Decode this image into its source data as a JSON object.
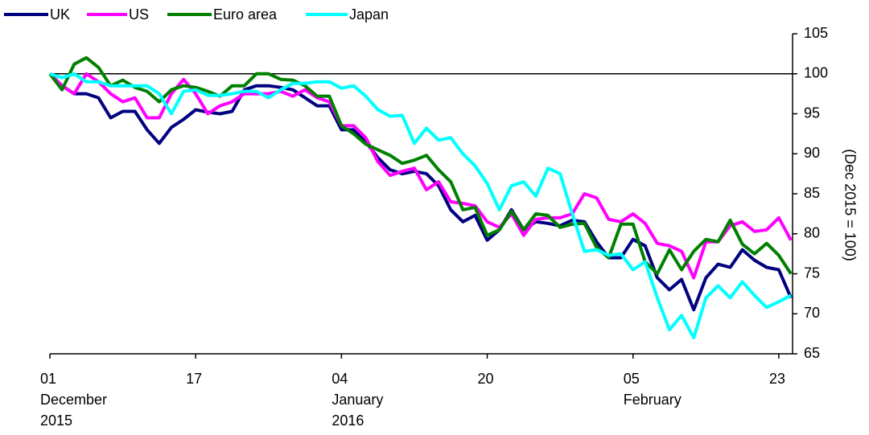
{
  "chart_data": {
    "type": "line",
    "y_axis_label": "(Dec 2015 = 100)",
    "categories": [
      "01\nDecember\n2015",
      null,
      null,
      null,
      null,
      null,
      null,
      null,
      null,
      null,
      null,
      null,
      "17",
      null,
      null,
      null,
      null,
      null,
      null,
      null,
      null,
      null,
      null,
      null,
      "04\nJanuary\n2016",
      null,
      null,
      null,
      null,
      null,
      null,
      null,
      null,
      null,
      null,
      null,
      "20",
      null,
      null,
      null,
      null,
      null,
      null,
      null,
      null,
      null,
      null,
      null,
      "05\nFebruary",
      null,
      null,
      null,
      null,
      null,
      null,
      null,
      null,
      null,
      null,
      null,
      "23",
      null
    ],
    "series": [
      {
        "name": "UK",
        "color": "#000080",
        "values": [
          100,
          98.5,
          97.5,
          97.5,
          97,
          94.5,
          95.3,
          95.3,
          93,
          91.3,
          93.3,
          94.3,
          95.5,
          95.2,
          95,
          95.3,
          98,
          98.5,
          98.5,
          98.3,
          98,
          97,
          96,
          96,
          93,
          93,
          91.5,
          89.5,
          88,
          87.5,
          87.8,
          87.5,
          86,
          83,
          81.5,
          82.3,
          79.2,
          80.5,
          83,
          80.5,
          81.5,
          81.3,
          81,
          81.7,
          81.5,
          79,
          77,
          77,
          79.3,
          78.5,
          74.5,
          73,
          74.3,
          70.5,
          74.5,
          76.2,
          75.8,
          78,
          76.7,
          75.8,
          75.5,
          72
        ]
      },
      {
        "name": "US",
        "color": "#ff00ff",
        "values": [
          100,
          98.5,
          97.5,
          100,
          99,
          97.5,
          96.5,
          97,
          94.5,
          94.5,
          97.5,
          99.3,
          97.5,
          95,
          96,
          96.5,
          97.5,
          97.5,
          97.5,
          97.8,
          97.2,
          98,
          97,
          96.5,
          93.5,
          93.5,
          92,
          89,
          87.3,
          87.8,
          88.2,
          85.5,
          86.5,
          84,
          83.8,
          83.5,
          81.5,
          80.8,
          82.5,
          79.8,
          81.8,
          82,
          82,
          82.5,
          85,
          84.5,
          81.8,
          81.5,
          82.5,
          81.3,
          78.8,
          78.5,
          77.8,
          74.5,
          79,
          79,
          81,
          81.5,
          80.3,
          80.5,
          82,
          79.2
        ]
      },
      {
        "name": "Euro area",
        "color": "#008000",
        "values": [
          100,
          98,
          101.2,
          102,
          100.8,
          98.5,
          99.2,
          98.3,
          97.8,
          96.5,
          98,
          98.5,
          98.3,
          97.8,
          97.2,
          98.5,
          98.5,
          100,
          100,
          99.3,
          99.2,
          98.5,
          97.2,
          97.2,
          93.5,
          92.5,
          91.2,
          90.5,
          89.8,
          88.8,
          89.2,
          89.8,
          88,
          86.5,
          83,
          83.3,
          79.8,
          80.5,
          82.8,
          80.5,
          82.5,
          82.3,
          80.8,
          81.2,
          81.3,
          78.3,
          77,
          81.2,
          81.2,
          76.5,
          75,
          78,
          75.5,
          77.8,
          79.3,
          79,
          81.7,
          78.7,
          77.5,
          78.8,
          77.3,
          75
        ]
      },
      {
        "name": "Japan",
        "color": "#00ffff",
        "values": [
          100,
          99.5,
          100,
          99,
          99,
          98.5,
          98.5,
          98.5,
          98.5,
          97.5,
          95,
          97.8,
          98,
          97.3,
          97.3,
          97.5,
          97.8,
          97.8,
          97,
          98,
          98.8,
          98.8,
          99,
          99,
          98.2,
          98.5,
          97.2,
          95.5,
          94.7,
          94.8,
          91.3,
          93.2,
          91.7,
          92,
          90,
          88.5,
          86.3,
          83,
          86,
          86.5,
          84.7,
          88.2,
          87.5,
          82.5,
          77.8,
          78,
          77.3,
          77.5,
          75.5,
          76.5,
          72,
          68,
          69.8,
          67,
          72,
          73.5,
          72,
          74,
          72.3,
          70.8,
          71.5,
          72.3
        ]
      }
    ],
    "reference_line": 100,
    "ylim": [
      65,
      105
    ],
    "yticks": [
      65,
      70,
      75,
      80,
      85,
      90,
      95,
      100,
      105
    ],
    "y_axis_side": "right",
    "legend": "top-left",
    "grid": false
  }
}
